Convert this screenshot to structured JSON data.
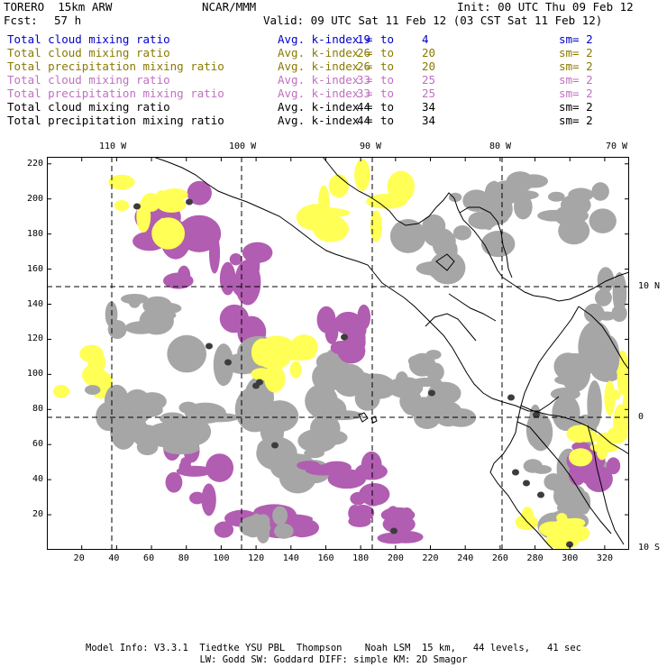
{
  "header": {
    "model": "TORERO  15km ARW",
    "org": "NCAR/MMM",
    "init": "Init: 00 UTC Thu 09 Feb 12",
    "fcst_label": "Fcst:",
    "fcst_value": "57 h",
    "valid": "Valid: 09 UTC Sat 11 Feb 12 (03 CST Sat 11 Feb 12)"
  },
  "legend": [
    {
      "field": "Total cloud mixing ratio",
      "idx_label": "Avg. k-index =",
      "from": "19",
      "to_word": "to",
      "to": "4",
      "sm": "sm= 2",
      "color": "#0000cc"
    },
    {
      "field": "Total cloud mixing ratio",
      "idx_label": "Avg. k-index =",
      "from": "26",
      "to_word": "to",
      "to": "20",
      "sm": "sm= 2",
      "color": "#8a7a00"
    },
    {
      "field": "Total precipitation mixing ratio",
      "idx_label": "Avg. k-index =",
      "from": "26",
      "to_word": "to",
      "to": "20",
      "sm": "sm= 2",
      "color": "#8a7a00"
    },
    {
      "field": "Total cloud mixing ratio",
      "idx_label": "Avg. k-index =",
      "from": "33",
      "to_word": "to",
      "to": "25",
      "sm": "sm= 2",
      "color": "#c070c0"
    },
    {
      "field": "Total precipitation mixing ratio",
      "idx_label": "Avg. k-index =",
      "from": "33",
      "to_word": "to",
      "to": "25",
      "sm": "sm= 2",
      "color": "#c070c0"
    },
    {
      "field": "Total cloud mixing ratio",
      "idx_label": "Avg. k-index =",
      "from": "44",
      "to_word": "to",
      "to": "34",
      "sm": "sm= 2",
      "color": "#000000"
    },
    {
      "field": "Total precipitation mixing ratio",
      "idx_label": "Avg. k-index =",
      "from": "44",
      "to_word": "to",
      "to": "34",
      "sm": "sm= 2",
      "color": "#000000"
    }
  ],
  "map": {
    "lon_labels": [
      "110 W",
      "100 W",
      "90 W",
      "80 W",
      "70 W"
    ],
    "lat_labels": [
      "10 N",
      "0",
      "10 S"
    ],
    "x_ticks": [
      "20",
      "40",
      "60",
      "80",
      "100",
      "120",
      "140",
      "160",
      "180",
      "200",
      "220",
      "240",
      "260",
      "280",
      "300",
      "320"
    ],
    "y_ticks": [
      "220",
      "200",
      "180",
      "160",
      "140",
      "120",
      "100",
      "80",
      "60",
      "40",
      "20"
    ],
    "x_range": [
      0,
      334
    ],
    "y_range": [
      0,
      224
    ],
    "colors": {
      "grey": "#a6a6a6",
      "dark": "#3c3c3c",
      "purple": "#b15db1",
      "yellow": "#ffff55",
      "cyan": "#c9eefa",
      "line": "#000000"
    }
  },
  "footer": {
    "line1": "Model Info: V3.3.1  Tiedtke YSU PBL  Thompson    Noah LSM  15 km,   44 levels,   41 sec",
    "line2": "LW: Godd SW: Goddard DIFF: simple KM: 2D Smagor"
  }
}
